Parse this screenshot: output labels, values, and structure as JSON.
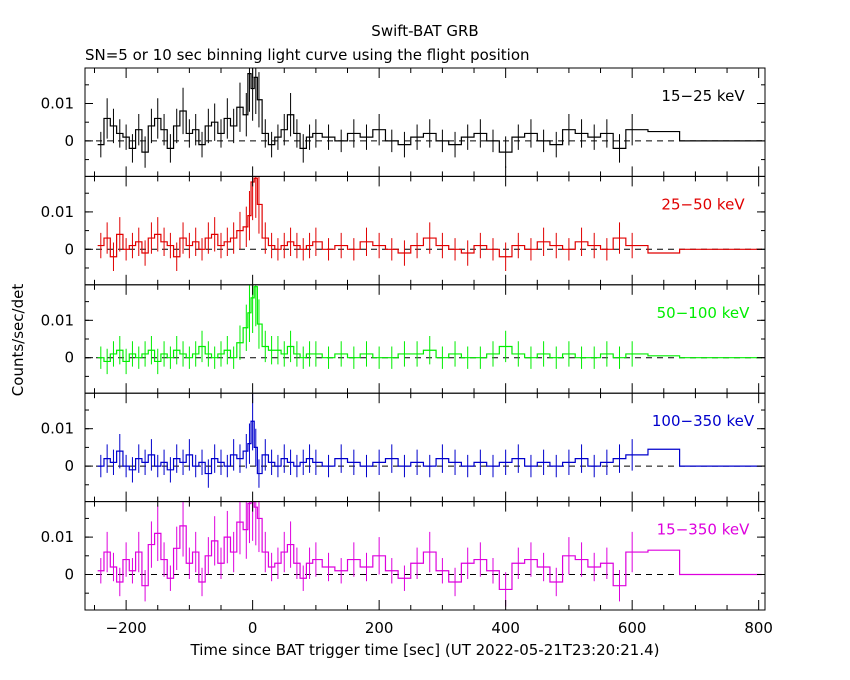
{
  "chart_data": {
    "type": "line",
    "title": "Swift-BAT GRB",
    "subtitle": "SN=5 or 10 sec binning light curve using the flight position",
    "xlabel": "Time since BAT trigger time [sec] (UT 2022-05-21T23:20:21.4)",
    "ylabel": "Counts/sec/det",
    "xlim": [
      -265,
      810
    ],
    "ylim": [
      -0.0095,
      0.0195
    ],
    "x_ticks": [
      -200,
      0,
      200,
      400,
      600,
      800
    ],
    "x_tick_labels": [
      "−200",
      "0",
      "200",
      "400",
      "600",
      "800"
    ],
    "y_ticks": [
      0,
      0.01
    ],
    "y_tick_labels": [
      "0",
      "0.01"
    ],
    "grid": false,
    "panels": [
      {
        "name": "15−25 keV",
        "color": "#000000",
        "x": [
          -240,
          -230,
          -220,
          -210,
          -200,
          -190,
          -180,
          -170,
          -160,
          -150,
          -140,
          -130,
          -120,
          -110,
          -100,
          -90,
          -80,
          -70,
          -60,
          -50,
          -40,
          -30,
          -20,
          -10,
          -5,
          0,
          5,
          10,
          20,
          30,
          40,
          50,
          60,
          70,
          80,
          90,
          100,
          120,
          140,
          160,
          180,
          200,
          220,
          240,
          260,
          280,
          300,
          320,
          340,
          360,
          380,
          400,
          420,
          440,
          460,
          480,
          500,
          520,
          540,
          560,
          580,
          600,
          650,
          700,
          750,
          800
        ],
        "y": [
          -0.001,
          0.006,
          0.004,
          0.002,
          0.001,
          -0.002,
          0.003,
          -0.003,
          0.004,
          0.006,
          0.003,
          -0.002,
          0.004,
          0.008,
          0.002,
          0.003,
          -0.001,
          0.004,
          0.005,
          0.002,
          0.006,
          0.004,
          0.009,
          0.007,
          0.018,
          0.014,
          0.017,
          0.011,
          0.002,
          -0.001,
          0.001,
          0.003,
          0.007,
          0.002,
          -0.002,
          0.001,
          0.002,
          0.001,
          0.0,
          0.002,
          0.001,
          0.003,
          0.0,
          -0.001,
          0.001,
          0.002,
          0.0,
          -0.001,
          0.001,
          0.002,
          0.0,
          -0.003,
          0.001,
          0.002,
          0.0,
          -0.001,
          0.003,
          0.002,
          0.001,
          0.002,
          -0.002,
          0.003,
          0.0025,
          0.0,
          0.0,
          0.0
        ]
      },
      {
        "name": "25−50 keV",
        "color": "#e00000",
        "x": [
          -240,
          -230,
          -220,
          -210,
          -200,
          -190,
          -180,
          -170,
          -160,
          -150,
          -140,
          -130,
          -120,
          -110,
          -100,
          -90,
          -80,
          -70,
          -60,
          -50,
          -40,
          -30,
          -20,
          -10,
          -5,
          0,
          5,
          10,
          20,
          30,
          40,
          50,
          60,
          70,
          80,
          90,
          100,
          120,
          140,
          160,
          180,
          200,
          220,
          240,
          260,
          280,
          300,
          320,
          340,
          360,
          380,
          400,
          420,
          440,
          460,
          480,
          500,
          520,
          540,
          560,
          580,
          600,
          650,
          700,
          750,
          800
        ],
        "y": [
          0.001,
          0.003,
          -0.002,
          0.004,
          0.0,
          0.001,
          0.002,
          -0.001,
          0.003,
          0.004,
          0.002,
          0.001,
          -0.002,
          0.003,
          0.001,
          0.002,
          0.0,
          0.003,
          0.004,
          0.001,
          0.002,
          0.003,
          0.005,
          0.006,
          0.009,
          0.018,
          0.019,
          0.012,
          0.003,
          0.001,
          0.0,
          0.001,
          0.002,
          0.001,
          0.0,
          0.001,
          0.002,
          0.0,
          0.001,
          0.0,
          0.002,
          0.001,
          0.0,
          -0.001,
          0.001,
          0.003,
          0.001,
          0.0,
          -0.001,
          0.001,
          0.0,
          -0.002,
          0.001,
          0.0,
          0.002,
          0.001,
          0.0,
          0.002,
          0.001,
          0.0,
          0.003,
          0.001,
          -0.001,
          0.0,
          0.0,
          0.0
        ]
      },
      {
        "name": "50−100 keV",
        "color": "#00ee00",
        "x": [
          -240,
          -230,
          -220,
          -210,
          -200,
          -190,
          -180,
          -170,
          -160,
          -150,
          -140,
          -130,
          -120,
          -110,
          -100,
          -90,
          -80,
          -70,
          -60,
          -50,
          -40,
          -30,
          -20,
          -10,
          -5,
          0,
          5,
          10,
          20,
          30,
          40,
          50,
          60,
          70,
          80,
          90,
          100,
          120,
          140,
          160,
          180,
          200,
          220,
          240,
          260,
          280,
          300,
          320,
          340,
          360,
          380,
          400,
          420,
          440,
          460,
          480,
          500,
          520,
          540,
          560,
          580,
          600,
          650,
          700,
          750,
          800
        ],
        "y": [
          0.0,
          -0.001,
          0.001,
          0.002,
          -0.001,
          0.001,
          0.0,
          0.001,
          0.002,
          -0.001,
          0.001,
          0.0,
          0.002,
          0.001,
          0.0,
          0.001,
          0.003,
          0.001,
          0.0,
          0.001,
          0.002,
          0.0,
          0.004,
          0.008,
          0.012,
          0.016,
          0.019,
          0.009,
          0.003,
          0.002,
          0.002,
          0.001,
          0.003,
          0.001,
          0.0,
          0.001,
          0.001,
          0.0,
          0.001,
          0.0,
          0.001,
          0.0,
          0.0,
          0.001,
          0.001,
          0.002,
          0.0,
          0.001,
          0.0,
          0.0,
          0.001,
          0.003,
          0.001,
          0.0,
          0.001,
          0.0,
          0.001,
          0.0,
          0.0,
          0.001,
          0.0,
          0.001,
          0.0005,
          0.0,
          0.0,
          0.0
        ]
      },
      {
        "name": "100−350 keV",
        "color": "#0000cc",
        "x": [
          -240,
          -230,
          -220,
          -210,
          -200,
          -190,
          -180,
          -170,
          -160,
          -150,
          -140,
          -130,
          -120,
          -110,
          -100,
          -90,
          -80,
          -70,
          -60,
          -50,
          -40,
          -30,
          -20,
          -10,
          -5,
          0,
          5,
          10,
          20,
          30,
          40,
          50,
          60,
          70,
          80,
          90,
          100,
          120,
          140,
          160,
          180,
          200,
          220,
          240,
          260,
          280,
          300,
          320,
          340,
          360,
          380,
          400,
          420,
          440,
          460,
          480,
          500,
          520,
          540,
          560,
          580,
          600,
          650,
          700,
          750,
          800
        ],
        "y": [
          0.0,
          0.002,
          0.001,
          0.004,
          0.0,
          -0.001,
          0.002,
          0.001,
          0.003,
          0.0,
          0.001,
          -0.001,
          0.002,
          0.001,
          0.003,
          0.0,
          0.001,
          -0.002,
          0.002,
          0.001,
          0.0,
          0.003,
          0.002,
          0.004,
          0.006,
          0.012,
          0.005,
          -0.002,
          0.003,
          0.001,
          0.0,
          0.002,
          0.001,
          0.0,
          0.001,
          0.002,
          0.001,
          0.0,
          0.002,
          0.001,
          0.0,
          0.001,
          0.002,
          0.0,
          0.001,
          0.0,
          0.002,
          0.001,
          0.0,
          0.001,
          0.0,
          0.001,
          0.002,
          0.0,
          0.001,
          0.0,
          0.001,
          0.002,
          0.0,
          0.001,
          0.002,
          0.003,
          0.0045,
          0.0,
          0.0,
          0.0
        ]
      },
      {
        "name": "15−350 keV",
        "color": "#dd00dd",
        "x": [
          -240,
          -230,
          -220,
          -210,
          -200,
          -190,
          -180,
          -170,
          -160,
          -150,
          -140,
          -130,
          -120,
          -110,
          -100,
          -90,
          -80,
          -70,
          -60,
          -50,
          -40,
          -30,
          -20,
          -10,
          -5,
          0,
          5,
          10,
          20,
          30,
          40,
          50,
          60,
          70,
          80,
          90,
          100,
          120,
          140,
          160,
          180,
          200,
          220,
          240,
          260,
          280,
          300,
          320,
          340,
          360,
          380,
          400,
          420,
          440,
          460,
          480,
          500,
          520,
          540,
          560,
          580,
          600,
          650,
          700,
          750,
          800
        ],
        "y": [
          0.001,
          0.006,
          0.002,
          -0.002,
          0.004,
          0.001,
          0.006,
          -0.003,
          0.008,
          0.011,
          0.004,
          -0.001,
          0.007,
          0.013,
          0.003,
          0.006,
          -0.002,
          0.005,
          0.009,
          0.003,
          0.01,
          0.006,
          0.014,
          0.012,
          0.019,
          0.02,
          0.018,
          0.015,
          0.006,
          0.002,
          0.003,
          0.006,
          0.008,
          0.003,
          -0.001,
          0.003,
          0.004,
          0.002,
          0.001,
          0.004,
          0.002,
          0.005,
          0.001,
          -0.001,
          0.003,
          0.006,
          0.001,
          -0.002,
          0.003,
          0.004,
          0.001,
          -0.004,
          0.003,
          0.004,
          0.002,
          -0.002,
          0.005,
          0.004,
          0.002,
          0.003,
          -0.003,
          0.006,
          0.0065,
          0.0,
          0.0,
          0.0
        ]
      }
    ]
  }
}
